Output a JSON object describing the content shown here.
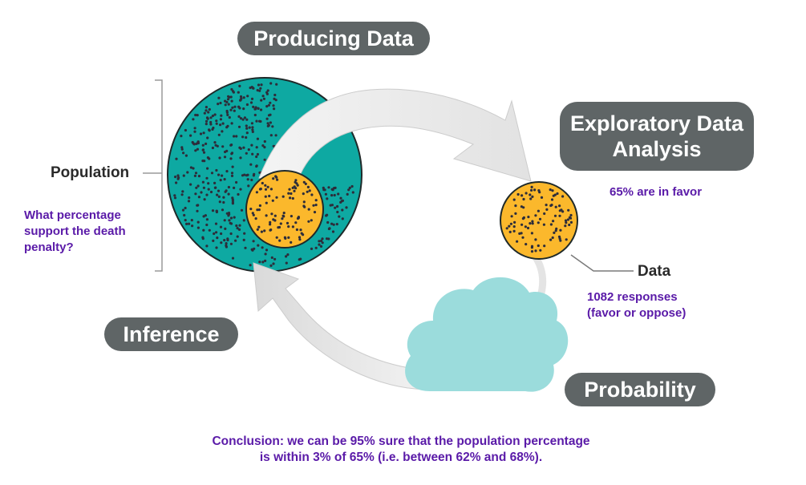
{
  "stages": {
    "producing_data": "Producing Data",
    "exploratory_line1": "Exploratory Data",
    "exploratory_line2": "Analysis",
    "inference": "Inference",
    "probability": "Probability"
  },
  "labels": {
    "population": "Population",
    "data": "Data"
  },
  "annotations": {
    "question": "What percentage support the death penalty?",
    "favor": "65% are in favor",
    "responses_line1": "1082 responses",
    "responses_line2": "(favor or oppose)",
    "conclusion_line1": "Conclusion: we can be 95% sure that the population percentage",
    "conclusion_line2": "is within 3% of 65% (i.e. between 62% and 68%)."
  },
  "colors": {
    "population_fill": "#0ea9a2",
    "sample_fill": "#fbb82c",
    "pill_fill": "#5f6566",
    "cloud_fill": "#9bdcdc",
    "arrow_fill": "#e6e6e6",
    "annotation_text": "#5a1aa8",
    "dots": "#2d2d3a"
  }
}
